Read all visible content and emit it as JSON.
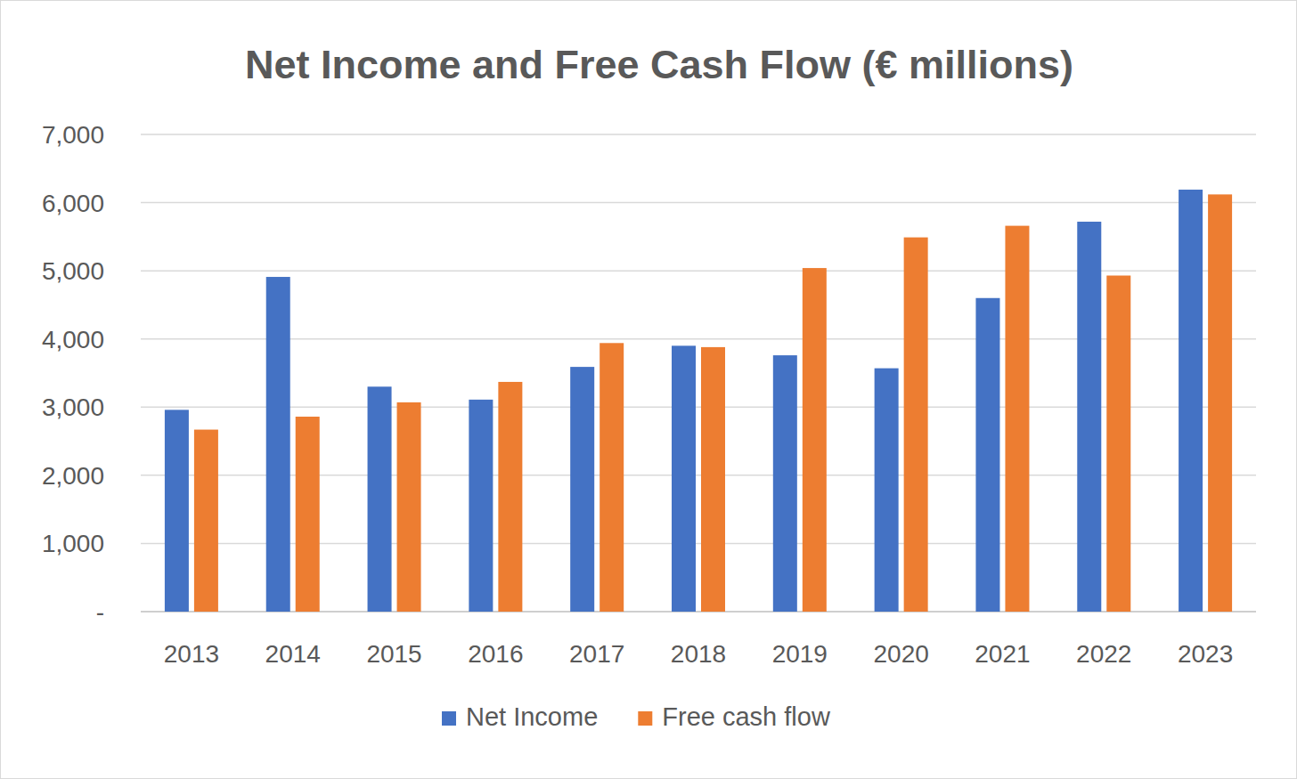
{
  "chart_data": {
    "type": "bar",
    "title": "Net Income and Free Cash Flow (€ millions)",
    "categories": [
      "2013",
      "2014",
      "2015",
      "2016",
      "2017",
      "2018",
      "2019",
      "2020",
      "2021",
      "2022",
      "2023"
    ],
    "series": [
      {
        "name": "Net Income",
        "color": "#4472c4",
        "values": [
          2960,
          4910,
          3300,
          3110,
          3590,
          3900,
          3760,
          3570,
          4600,
          5720,
          6190
        ]
      },
      {
        "name": "Free cash flow",
        "color": "#ed7d31",
        "values": [
          2670,
          2860,
          3070,
          3370,
          3940,
          3880,
          5040,
          5490,
          5660,
          4930,
          6120
        ]
      }
    ],
    "ylim": [
      0,
      7000
    ],
    "yticks": [
      {
        "value": 0,
        "label": "-"
      },
      {
        "value": 1000,
        "label": "1,000"
      },
      {
        "value": 2000,
        "label": "2,000"
      },
      {
        "value": 3000,
        "label": "3,000"
      },
      {
        "value": 4000,
        "label": "4,000"
      },
      {
        "value": 5000,
        "label": "5,000"
      },
      {
        "value": 6000,
        "label": "6,000"
      },
      {
        "value": 7000,
        "label": "7,000"
      }
    ],
    "grid": true,
    "legend": "bottom"
  }
}
